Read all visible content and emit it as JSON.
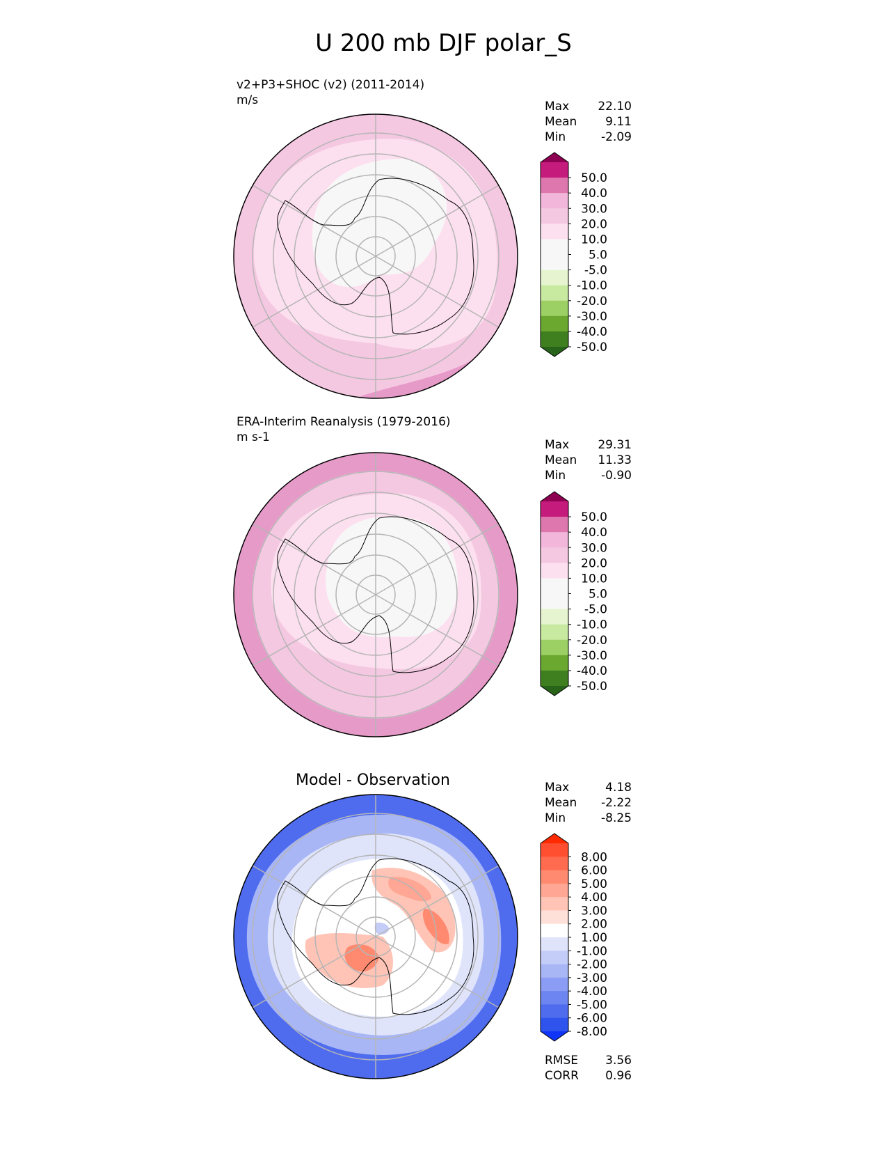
{
  "title": "U 200 mb DJF polar_S",
  "panels": [
    {
      "name": "test",
      "caption": "v2+P3+SHOC (v2) (2011-2014)",
      "units": "m/s",
      "stats": [
        {
          "label": "Max",
          "value": "22.10"
        },
        {
          "label": "Mean",
          "value": "9.11"
        },
        {
          "label": "Min",
          "value": "-2.09"
        }
      ],
      "colorbar": {
        "colors": [
          "#8e0152",
          "#c51b7d",
          "#de77ae",
          "#f1b6da",
          "#f5c8e2",
          "#fde0ef",
          "#f7f7f7",
          "#f7f7f7",
          "#e6f5d0",
          "#c7e9a0",
          "#9ccf64",
          "#6aa830",
          "#3f7f1f",
          "#276419"
        ],
        "ticks": [
          "50.0",
          "40.0",
          "30.0",
          "20.0",
          "10.0",
          "5.0",
          "-5.0",
          "-10.0",
          "-20.0",
          "-30.0",
          "-40.0",
          "-50.0"
        ]
      }
    },
    {
      "name": "reference",
      "caption": "ERA-Interim Reanalysis (1979-2016)",
      "units": "m s-1",
      "stats": [
        {
          "label": "Max",
          "value": "29.31"
        },
        {
          "label": "Mean",
          "value": "11.33"
        },
        {
          "label": "Min",
          "value": "-0.90"
        }
      ],
      "colorbar": {
        "colors": [
          "#8e0152",
          "#c51b7d",
          "#de77ae",
          "#f1b6da",
          "#f5c8e2",
          "#fde0ef",
          "#f7f7f7",
          "#f7f7f7",
          "#e6f5d0",
          "#c7e9a0",
          "#9ccf64",
          "#6aa830",
          "#3f7f1f",
          "#276419"
        ],
        "ticks": [
          "50.0",
          "40.0",
          "30.0",
          "20.0",
          "10.0",
          "5.0",
          "-5.0",
          "-10.0",
          "-20.0",
          "-30.0",
          "-40.0",
          "-50.0"
        ]
      }
    },
    {
      "name": "difference",
      "caption": "Model - Observation",
      "units": "",
      "stats": [
        {
          "label": "Max",
          "value": "4.18"
        },
        {
          "label": "Mean",
          "value": "-2.22"
        },
        {
          "label": "Min",
          "value": "-8.25"
        }
      ],
      "extra_stats": [
        {
          "label": "RMSE",
          "value": "3.56"
        },
        {
          "label": "CORR",
          "value": "0.96"
        }
      ],
      "colorbar": {
        "colors": [
          "#ff2a00",
          "#ff4f30",
          "#ff6b4e",
          "#ff8a70",
          "#ffa694",
          "#ffc4b6",
          "#ffe0d8",
          "#ffffff",
          "#dfe4fb",
          "#c4cdf8",
          "#a8b6f6",
          "#8a9cf3",
          "#6d85f0",
          "#4f6cee",
          "#2f54ee",
          "#1035f8"
        ],
        "ticks": [
          "8.00",
          "6.00",
          "5.00",
          "4.00",
          "3.00",
          "2.00",
          "1.00",
          "-1.00",
          "-2.00",
          "-3.00",
          "-4.00",
          "-5.00",
          "-6.00",
          "-8.00"
        ]
      }
    }
  ],
  "chart_data": [
    {
      "type": "heatmap",
      "title": "v2+P3+SHOC (v2) (2011-2014)",
      "projection": "south polar stereographic",
      "units": "m/s",
      "levels": [
        -50,
        -40,
        -30,
        -20,
        -10,
        -5,
        5,
        10,
        20,
        30,
        40,
        50
      ],
      "max": 22.1,
      "mean": 9.11,
      "min": -2.09
    },
    {
      "type": "heatmap",
      "title": "ERA-Interim Reanalysis (1979-2016)",
      "projection": "south polar stereographic",
      "units": "m s-1",
      "levels": [
        -50,
        -40,
        -30,
        -20,
        -10,
        -5,
        5,
        10,
        20,
        30,
        40,
        50
      ],
      "max": 29.31,
      "mean": 11.33,
      "min": -0.9
    },
    {
      "type": "heatmap",
      "title": "Model - Observation",
      "projection": "south polar stereographic",
      "levels": [
        -8,
        -6,
        -5,
        -4,
        -3,
        -2,
        -1,
        1,
        2,
        3,
        4,
        5,
        6,
        8
      ],
      "max": 4.18,
      "mean": -2.22,
      "min": -8.25,
      "rmse": 3.56,
      "corr": 0.96
    }
  ]
}
